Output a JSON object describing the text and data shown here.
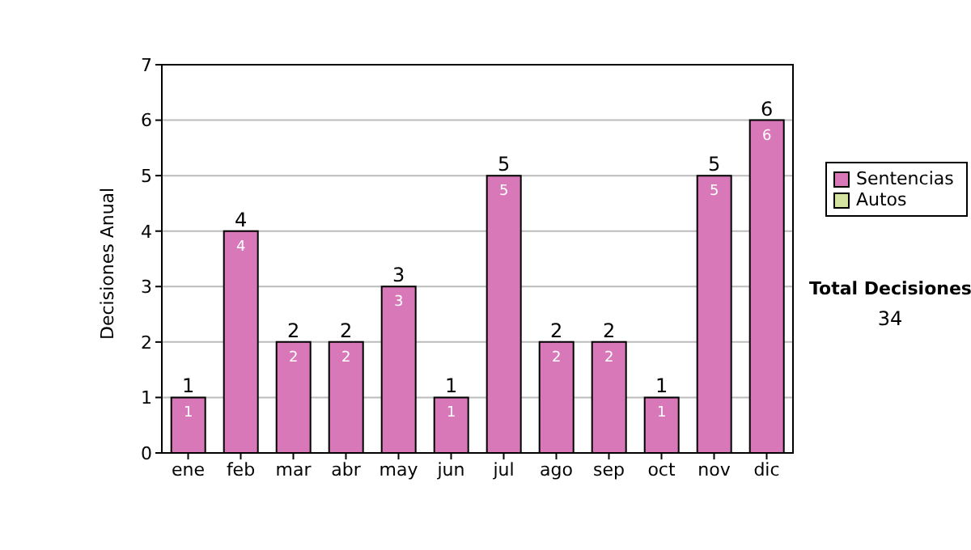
{
  "chart_data": {
    "type": "bar",
    "ylabel": "Decisiones Anual",
    "categories": [
      "ene",
      "feb",
      "mar",
      "abr",
      "may",
      "jun",
      "jul",
      "ago",
      "sep",
      "oct",
      "nov",
      "dic"
    ],
    "series": [
      {
        "name": "Sentencias",
        "color": "#d878b8",
        "values": [
          1,
          4,
          2,
          2,
          3,
          1,
          5,
          2,
          2,
          1,
          5,
          6
        ],
        "value_labels": [
          "1",
          "4",
          "2",
          "2",
          "3",
          "1",
          "5",
          "2",
          "2",
          "1",
          "5",
          "6"
        ]
      },
      {
        "name": "Autos",
        "color": "#d4e4a0",
        "values": [
          0,
          0,
          0,
          0,
          0,
          0,
          0,
          0,
          0,
          0,
          0,
          0
        ]
      }
    ],
    "stacked": true,
    "totals": [
      "1",
      "4",
      "2",
      "2",
      "3",
      "1",
      "5",
      "2",
      "2",
      "1",
      "5",
      "6"
    ],
    "ylim": [
      0,
      7
    ],
    "yticks": [
      0,
      1,
      2,
      3,
      4,
      5,
      6,
      7
    ],
    "grid": "y",
    "legend": "right",
    "annotations": [
      "Total Decisiones",
      "34"
    ]
  }
}
